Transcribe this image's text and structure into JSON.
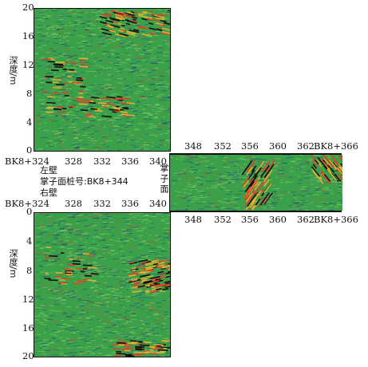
{
  "top_panel": {
    "y_label": "深度/m",
    "y_ticks": [
      "0",
      "4",
      "8",
      "12",
      "16",
      "20"
    ],
    "x_start_label": "BK8+324",
    "x_ticks": [
      "328",
      "332",
      "336",
      "340"
    ]
  },
  "bottom_panel": {
    "y_label": "深度/m",
    "y_ticks": [
      "0",
      "4",
      "8",
      "12",
      "16",
      "20"
    ],
    "x_start_label": "BK8+324",
    "x_ticks": [
      "328",
      "332",
      "336",
      "340"
    ]
  },
  "center_labels": {
    "left_wall": "左壁",
    "face_chainage": "掌子面桩号:BK8+344",
    "right_wall": "右壁",
    "face_vertical": "掌子面"
  },
  "face_panel": {
    "x_ticks_top": [
      "348",
      "352",
      "356",
      "360",
      "362"
    ],
    "x_end_top": "BK8+366",
    "x_ticks_bottom": [
      "348",
      "352",
      "356",
      "360",
      "362"
    ],
    "x_end_bottom": "BK8+366"
  },
  "colors": {
    "background_field": "#3aa04a",
    "stripe_dark": "#1f3f8a",
    "stripe_red": "#d8452a",
    "stripe_light": "#9ad86a"
  }
}
